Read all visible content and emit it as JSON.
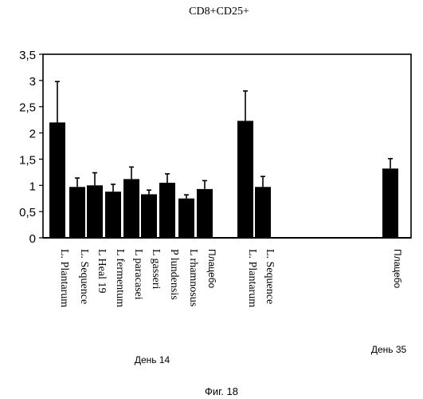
{
  "chart_data": {
    "type": "bar",
    "title": "CD8+CD25+",
    "ylim": [
      0,
      3.5
    ],
    "yticks": [
      "0",
      "0,5",
      "1",
      "1,5",
      "2",
      "2,5",
      "3",
      "3,5"
    ],
    "categories": [
      "L. Plantarum",
      "L. Sequence",
      "L Heal 19",
      "L fermentum",
      "L paracasei",
      "L gasseri",
      "P lundensis",
      "L rhamnosus",
      "Плацебо",
      "L. Plantarum",
      "L. Sequence",
      "Плацебо"
    ],
    "values": [
      2.2,
      0.97,
      1.0,
      0.88,
      1.12,
      0.83,
      1.05,
      0.75,
      0.93,
      2.23,
      0.97,
      1.32
    ],
    "errors": [
      0.78,
      0.17,
      0.24,
      0.14,
      0.23,
      0.08,
      0.17,
      0.07,
      0.16,
      0.57,
      0.2,
      0.19
    ],
    "groups": [
      {
        "label": "День 14",
        "count": 9
      },
      {
        "label": "День 35",
        "count": 3
      }
    ],
    "grid": false,
    "colors": {
      "bar": "#000000",
      "axis": "#000000"
    }
  },
  "figure_caption": "Фиг. 18"
}
